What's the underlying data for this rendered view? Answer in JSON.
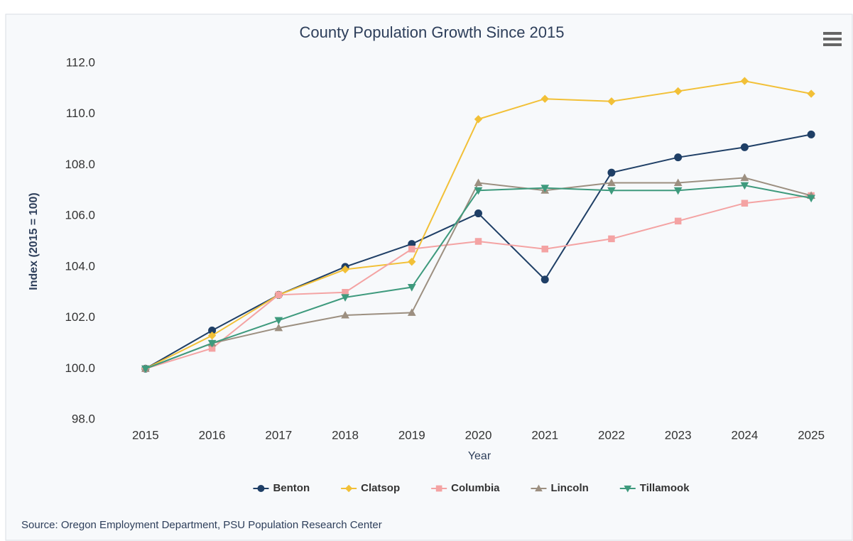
{
  "chart_data": {
    "type": "line",
    "title": "County Population Growth Since 2015",
    "x_label": "Year",
    "y_label": "Index (2015 = 100)",
    "source": "Source: Oregon Employment Department, PSU Population Research Center",
    "categories": [
      "2015",
      "2016",
      "2017",
      "2018",
      "2019",
      "2020",
      "2021",
      "2022",
      "2023",
      "2024",
      "2025"
    ],
    "ylim": [
      98,
      112
    ],
    "yticks": [
      {
        "value": 98,
        "label": "98.0"
      },
      {
        "value": 100,
        "label": "100.0"
      },
      {
        "value": 102,
        "label": "102.0"
      },
      {
        "value": 104,
        "label": "104.0"
      },
      {
        "value": 106,
        "label": "106.0"
      },
      {
        "value": 108,
        "label": "108.0"
      },
      {
        "value": 110,
        "label": "110.0"
      },
      {
        "value": 112,
        "label": "112.0"
      }
    ],
    "grid": false,
    "legend": "bottom",
    "series": [
      {
        "name": "Benton",
        "color": "#1f3f66",
        "marker": "circle",
        "values": [
          100,
          101.5,
          102.9,
          104.0,
          104.9,
          106.1,
          103.5,
          107.7,
          108.3,
          108.7,
          109.2
        ]
      },
      {
        "name": "Clatsop",
        "color": "#f2c037",
        "marker": "diamond",
        "values": [
          100,
          101.3,
          102.9,
          103.9,
          104.2,
          109.8,
          110.6,
          110.5,
          110.9,
          111.3,
          110.8
        ]
      },
      {
        "name": "Columbia",
        "color": "#f4a3a3",
        "marker": "square",
        "values": [
          100,
          100.8,
          102.9,
          103.0,
          104.7,
          105.0,
          104.7,
          105.1,
          105.8,
          106.5,
          106.8
        ]
      },
      {
        "name": "Lincoln",
        "color": "#9c8f80",
        "marker": "triangle",
        "values": [
          100,
          101.0,
          101.6,
          102.1,
          102.2,
          107.3,
          107.0,
          107.3,
          107.3,
          107.5,
          106.8
        ]
      },
      {
        "name": "Tillamook",
        "color": "#3e9a7d",
        "marker": "triangle-down",
        "values": [
          100,
          101.0,
          101.9,
          102.8,
          103.2,
          107.0,
          107.1,
          107.0,
          107.0,
          107.2,
          106.7
        ]
      }
    ]
  }
}
